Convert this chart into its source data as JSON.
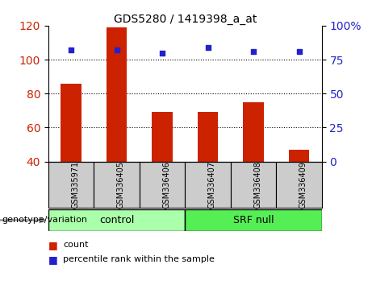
{
  "title": "GDS5280 / 1419398_a_at",
  "samples": [
    "GSM335971",
    "GSM336405",
    "GSM336406",
    "GSM336407",
    "GSM336408",
    "GSM336409"
  ],
  "counts": [
    86,
    119,
    69,
    69,
    75,
    47
  ],
  "percentile_ranks": [
    82,
    82,
    80,
    84,
    81,
    81
  ],
  "ylim_left": [
    40,
    120
  ],
  "ylim_right": [
    0,
    100
  ],
  "yticks_left": [
    40,
    60,
    80,
    100,
    120
  ],
  "yticks_right": [
    0,
    25,
    50,
    75,
    100
  ],
  "bar_color": "#cc2200",
  "dot_color": "#2222cc",
  "grid_color": "#000000",
  "bar_width": 0.45,
  "groups": [
    {
      "label": "control",
      "indices": [
        0,
        1,
        2
      ],
      "color": "#aaffaa"
    },
    {
      "label": "SRF null",
      "indices": [
        3,
        4,
        5
      ],
      "color": "#55ee55"
    }
  ],
  "genotype_label": "genotype/variation",
  "legend_count_label": "count",
  "legend_percentile_label": "percentile rank within the sample",
  "tick_label_color_left": "#cc2200",
  "tick_label_color_right": "#2222cc",
  "background_plot": "#ffffff",
  "background_xlabel": "#cccccc"
}
